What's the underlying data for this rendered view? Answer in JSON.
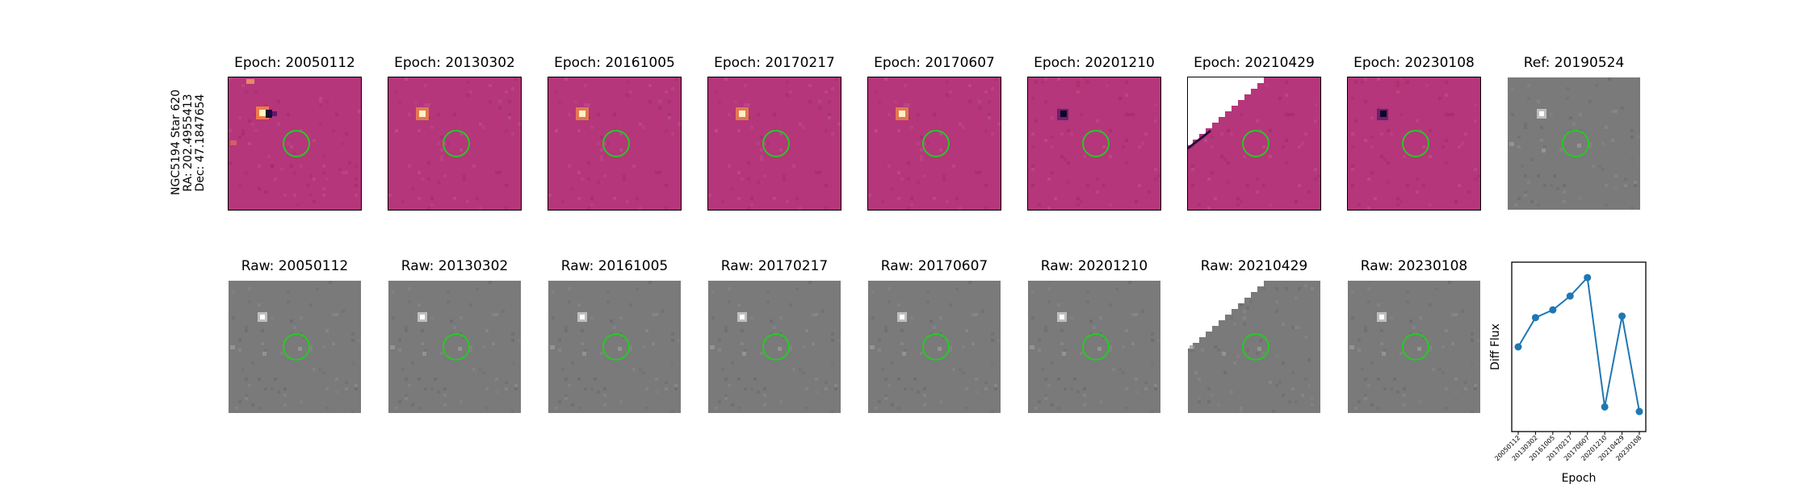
{
  "target": {
    "line1": "NGC5194 Star 620",
    "line2": "RA: 202.4955413",
    "line3": "Dec: 47.1847654"
  },
  "diff_panels": [
    {
      "title": "Epoch: 20050112",
      "variant": "dipole-strong"
    },
    {
      "title": "Epoch: 20130302",
      "variant": "bright"
    },
    {
      "title": "Epoch: 20161005",
      "variant": "bright"
    },
    {
      "title": "Epoch: 20170217",
      "variant": "bright"
    },
    {
      "title": "Epoch: 20170607",
      "variant": "bright"
    },
    {
      "title": "Epoch: 20201210",
      "variant": "dark"
    },
    {
      "title": "Epoch: 20210429",
      "variant": "edge"
    },
    {
      "title": "Epoch: 20230108",
      "variant": "dark"
    },
    {
      "title": "Ref: 20190524",
      "variant": "ref"
    }
  ],
  "raw_panels": [
    {
      "title": "Raw: 20050112",
      "variant": "raw"
    },
    {
      "title": "Raw: 20130302",
      "variant": "raw"
    },
    {
      "title": "Raw: 20161005",
      "variant": "raw"
    },
    {
      "title": "Raw: 20170217",
      "variant": "raw"
    },
    {
      "title": "Raw: 20170607",
      "variant": "raw"
    },
    {
      "title": "Raw: 20201210",
      "variant": "raw"
    },
    {
      "title": "Raw: 20210429",
      "variant": "raw-edge"
    },
    {
      "title": "Raw: 20230108",
      "variant": "raw"
    }
  ],
  "colors": {
    "diff_bg": "#b5367a",
    "circle": "#22cc22",
    "raw_bg": "#7a7a7a",
    "line": "#1f77b4"
  },
  "chart_data": {
    "type": "line",
    "title": "",
    "xlabel": "Epoch",
    "ylabel": "Diff Flux",
    "categories": [
      "20050112",
      "20130302",
      "20161005",
      "20170217",
      "20170607",
      "20201210",
      "20210429",
      "20230108"
    ],
    "values": [
      0.55,
      0.74,
      0.79,
      0.88,
      1.0,
      0.16,
      0.75,
      0.13
    ],
    "ylim": [
      0.0,
      1.1
    ],
    "marker": "circle",
    "grid": false,
    "legend": "none"
  }
}
